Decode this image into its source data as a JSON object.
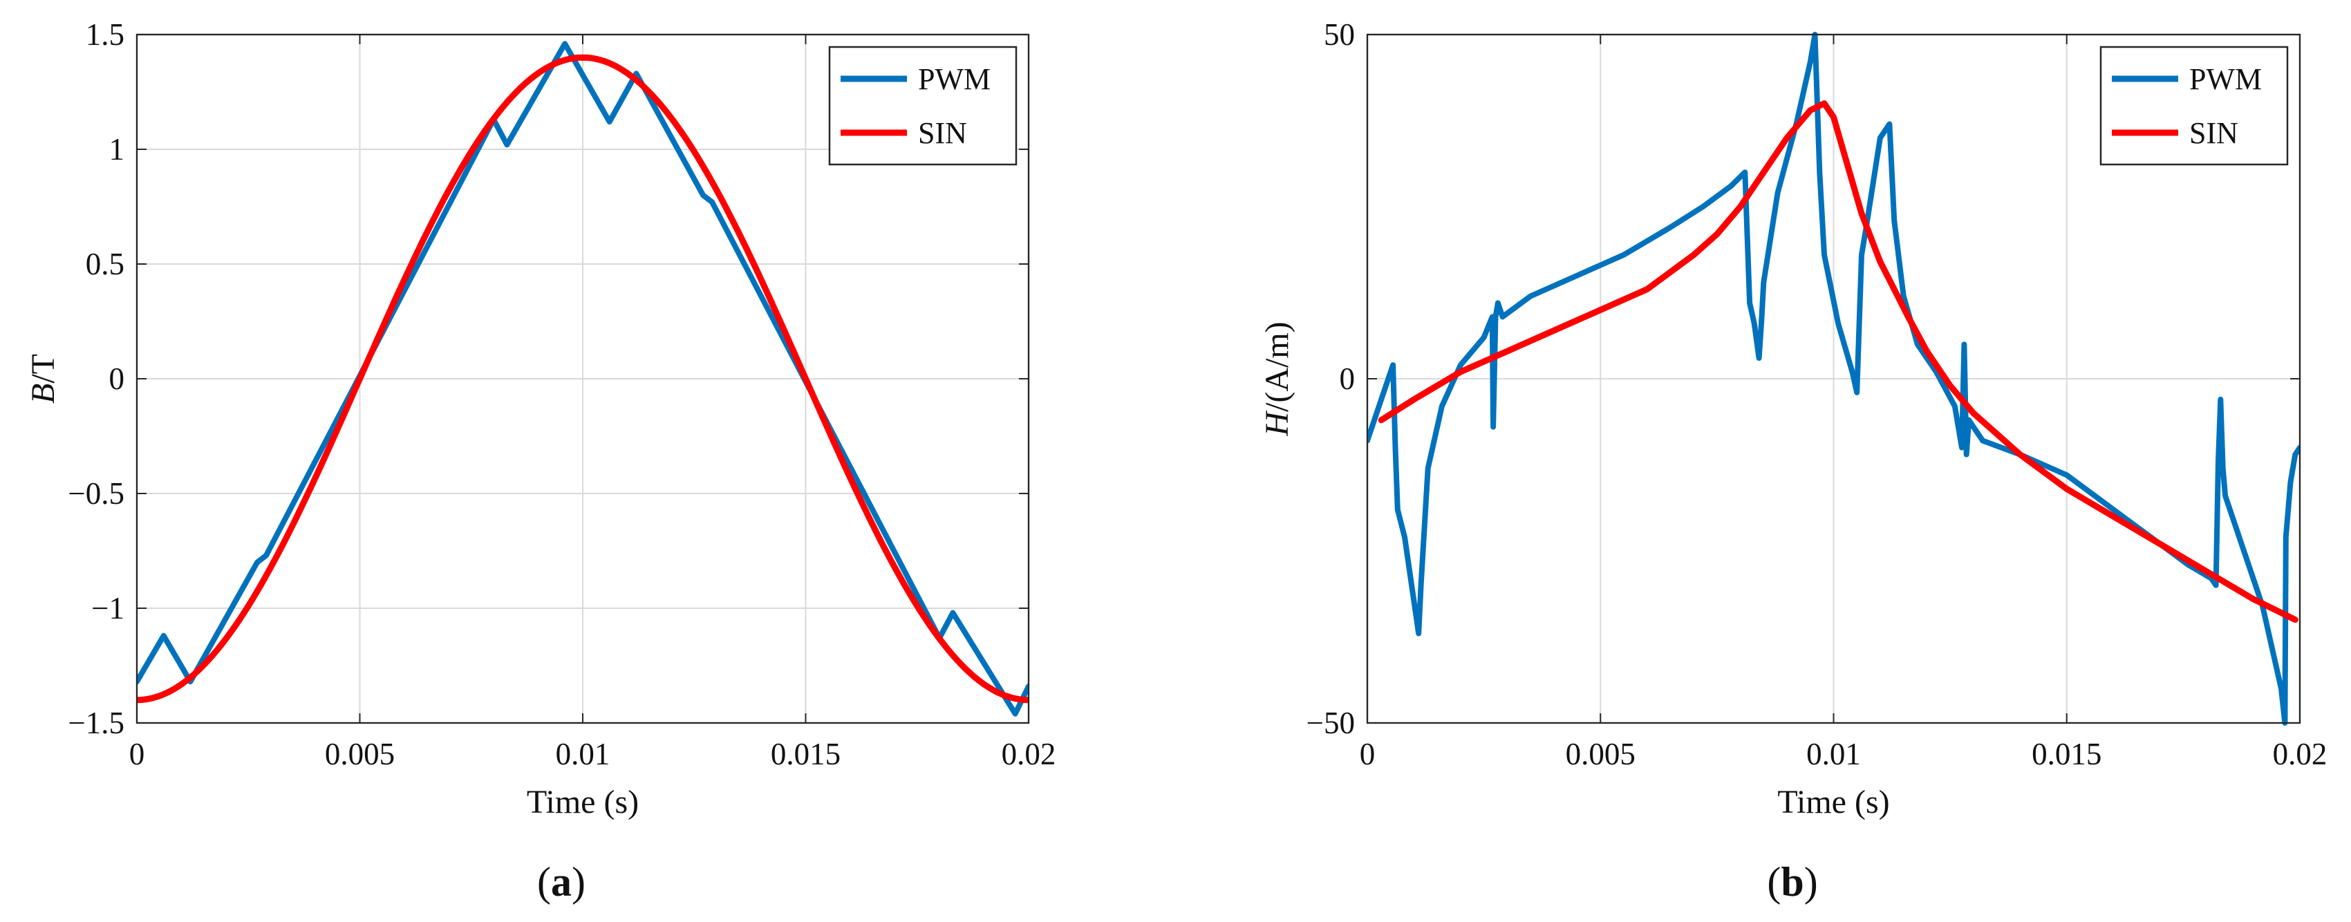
{
  "chart_data": [
    {
      "type": "line",
      "panel_label": "a",
      "title": "",
      "xlabel": "Time (s)",
      "ylabel_symbol": "B",
      "ylabel_unit": "/T",
      "xlim": [
        0,
        0.02
      ],
      "ylim": [
        -1.5,
        1.5
      ],
      "x_ticks": [
        0,
        0.005,
        0.01,
        0.015,
        0.02
      ],
      "x_tick_labels": [
        "0",
        "0.005",
        "0.01",
        "0.015",
        "0.02"
      ],
      "y_ticks": [
        1.5,
        1,
        0.5,
        0,
        -0.5,
        -1,
        -1.5
      ],
      "y_tick_labels": [
        "1.5",
        "1",
        "0.5",
        "0",
        "−0.5",
        "−1",
        "−1.5"
      ],
      "grid": true,
      "legend_position": "top-right",
      "series": [
        {
          "name": "PWM",
          "color": "#0072BD",
          "x": [
            0,
            0.0006,
            0.0012,
            0.0027,
            0.0029,
            0.008,
            0.0083,
            0.0096,
            0.0106,
            0.0112,
            0.0127,
            0.0129,
            0.018,
            0.0183,
            0.0197,
            0.02
          ],
          "y": [
            -1.32,
            -1.12,
            -1.32,
            -0.8,
            -0.77,
            1.13,
            1.02,
            1.46,
            1.12,
            1.33,
            0.8,
            0.77,
            -1.13,
            -1.02,
            -1.46,
            -1.34
          ]
        },
        {
          "name": "SIN",
          "color": "#FF0000",
          "function": "-1.4*cos(2*pi*50*t)",
          "x": [
            0,
            0.001,
            0.002,
            0.003,
            0.004,
            0.005,
            0.006,
            0.007,
            0.008,
            0.009,
            0.01,
            0.011,
            0.012,
            0.013,
            0.014,
            0.015,
            0.016,
            0.017,
            0.018,
            0.019,
            0.02
          ],
          "y": [
            -1.4,
            -1.33,
            -1.133,
            -0.823,
            -0.433,
            0,
            0.433,
            0.823,
            1.133,
            1.331,
            1.4,
            1.331,
            1.133,
            0.823,
            0.433,
            0,
            -0.433,
            -0.823,
            -1.133,
            -1.33,
            -1.4
          ]
        }
      ]
    },
    {
      "type": "line",
      "panel_label": "b",
      "title": "",
      "xlabel": "Time (s)",
      "ylabel_symbol": "H",
      "ylabel_unit": "/(A/m)",
      "xlim": [
        0,
        0.02
      ],
      "ylim": [
        -50,
        50
      ],
      "x_ticks": [
        0,
        0.005,
        0.01,
        0.015,
        0.02
      ],
      "x_tick_labels": [
        "0",
        "0.005",
        "0.01",
        "0.015",
        "0.02"
      ],
      "y_ticks": [
        50,
        0,
        -50
      ],
      "y_tick_labels": [
        "50",
        "0",
        "−50"
      ],
      "grid": true,
      "legend_position": "top-right",
      "series": [
        {
          "name": "PWM",
          "color": "#0072BD",
          "x": [
            0,
            0.0003,
            0.00055,
            0.0006,
            0.00065,
            0.0008,
            0.0011,
            0.00115,
            0.0013,
            0.0016,
            0.002,
            0.0025,
            0.00268,
            0.0027,
            0.00275,
            0.0028,
            0.0029,
            0.0035,
            0.0045,
            0.0055,
            0.0065,
            0.0072,
            0.0078,
            0.0081,
            0.0082,
            0.0083,
            0.0084,
            0.00845,
            0.0085,
            0.0088,
            0.0092,
            0.0095,
            0.0096,
            0.0097,
            0.0098,
            0.0101,
            0.0104,
            0.0105,
            0.0106,
            0.0107,
            0.011,
            0.0112,
            0.0113,
            0.0115,
            0.0118,
            0.0122,
            0.0126,
            0.01275,
            0.0128,
            0.01285,
            0.0129,
            0.0132,
            0.014,
            0.015,
            0.016,
            0.017,
            0.0176,
            0.0181,
            0.0182,
            0.01825,
            0.0183,
            0.01835,
            0.0184,
            0.0187,
            0.0192,
            0.0196,
            0.01968,
            0.0197,
            0.0198,
            0.0199,
            0.02
          ],
          "y": [
            -9,
            -3,
            2,
            -10,
            -19,
            -23,
            -37,
            -30,
            -13,
            -4,
            2,
            6,
            9,
            -7,
            9,
            11,
            9,
            12,
            15,
            18,
            22,
            25,
            28,
            30,
            11,
            8,
            3,
            8,
            14,
            27,
            37,
            46,
            50,
            30,
            18,
            8,
            1,
            -2,
            18,
            22,
            35,
            37,
            23,
            12,
            5,
            1,
            -4,
            -10,
            5,
            -11,
            -6,
            -9,
            -11,
            -14,
            -19,
            -24,
            -27,
            -29,
            -30,
            -12,
            -3,
            -13,
            -17,
            -23,
            -33,
            -45,
            -50,
            -23,
            -15,
            -11,
            -10
          ]
        },
        {
          "name": "SIN",
          "color": "#FF0000",
          "x": [
            0.0003,
            0.001,
            0.002,
            0.003,
            0.004,
            0.005,
            0.006,
            0.007,
            0.0075,
            0.008,
            0.0085,
            0.009,
            0.0095,
            0.0098,
            0.01,
            0.0103,
            0.0106,
            0.011,
            0.0113,
            0.0116,
            0.012,
            0.0125,
            0.013,
            0.014,
            0.015,
            0.016,
            0.017,
            0.018,
            0.019,
            0.0199
          ],
          "y": [
            -6,
            -3,
            1,
            4,
            7,
            10,
            13,
            18,
            21,
            25,
            30,
            35,
            39,
            40,
            38,
            31,
            24,
            17,
            13,
            9,
            4,
            -1,
            -5,
            -11,
            -16,
            -20,
            -24,
            -28,
            -32,
            -35
          ]
        }
      ]
    }
  ]
}
